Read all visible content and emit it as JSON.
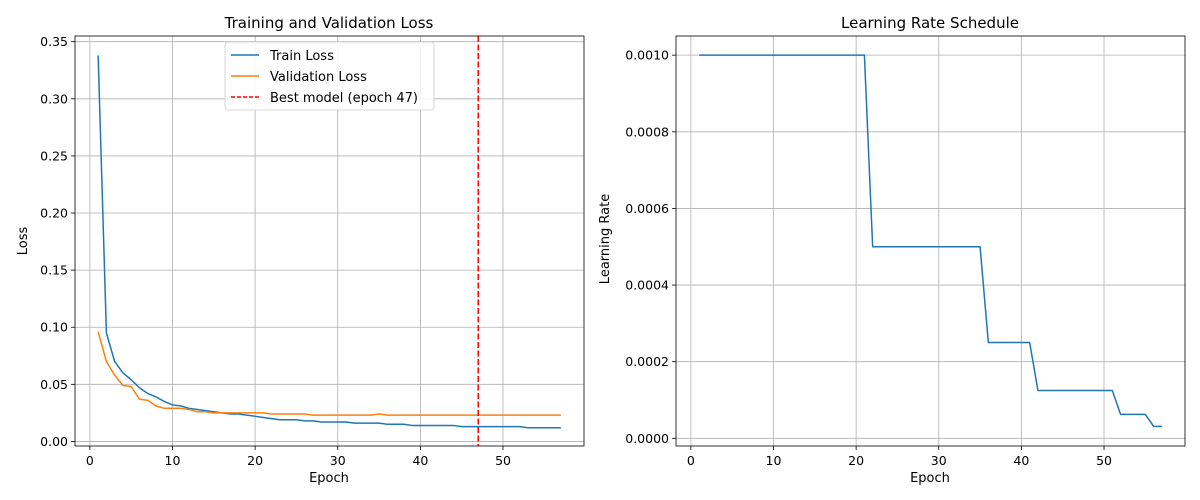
{
  "chart_data": [
    {
      "type": "line",
      "title": "Training and Validation Loss",
      "xlabel": "Epoch",
      "ylabel": "Loss",
      "xlim": [
        -1.8,
        59.8
      ],
      "ylim": [
        -0.004,
        0.355
      ],
      "xticks": [
        0,
        10,
        20,
        30,
        40,
        50
      ],
      "xtick_labels": [
        "0",
        "10",
        "20",
        "30",
        "40",
        "50"
      ],
      "yticks": [
        0.0,
        0.05,
        0.1,
        0.15,
        0.2,
        0.25,
        0.3,
        0.35
      ],
      "ytick_labels": [
        "0.00",
        "0.05",
        "0.10",
        "0.15",
        "0.20",
        "0.25",
        "0.30",
        "0.35"
      ],
      "grid": true,
      "legend_position": "top-center",
      "x": [
        1,
        2,
        3,
        4,
        5,
        6,
        7,
        8,
        9,
        10,
        11,
        12,
        13,
        14,
        15,
        16,
        17,
        18,
        19,
        20,
        21,
        22,
        23,
        24,
        25,
        26,
        27,
        28,
        29,
        30,
        31,
        32,
        33,
        34,
        35,
        36,
        37,
        38,
        39,
        40,
        41,
        42,
        43,
        44,
        45,
        46,
        47,
        48,
        49,
        50,
        51,
        52,
        53,
        54,
        55,
        56,
        57
      ],
      "series": [
        {
          "name": "Train Loss",
          "color": "#1f77b4",
          "values": [
            0.338,
            0.095,
            0.07,
            0.06,
            0.054,
            0.047,
            0.042,
            0.039,
            0.035,
            0.032,
            0.031,
            0.029,
            0.028,
            0.027,
            0.026,
            0.025,
            0.024,
            0.024,
            0.023,
            0.022,
            0.021,
            0.02,
            0.019,
            0.019,
            0.019,
            0.018,
            0.018,
            0.017,
            0.017,
            0.017,
            0.017,
            0.016,
            0.016,
            0.016,
            0.016,
            0.015,
            0.015,
            0.015,
            0.014,
            0.014,
            0.014,
            0.014,
            0.014,
            0.014,
            0.013,
            0.013,
            0.013,
            0.013,
            0.013,
            0.013,
            0.013,
            0.013,
            0.012,
            0.012,
            0.012,
            0.012,
            0.012
          ]
        },
        {
          "name": "Validation Loss",
          "color": "#ff7f0e",
          "values": [
            0.096,
            0.07,
            0.058,
            0.049,
            0.048,
            0.037,
            0.036,
            0.031,
            0.029,
            0.029,
            0.029,
            0.028,
            0.026,
            0.026,
            0.025,
            0.025,
            0.025,
            0.025,
            0.025,
            0.025,
            0.025,
            0.024,
            0.024,
            0.024,
            0.024,
            0.024,
            0.023,
            0.023,
            0.023,
            0.023,
            0.023,
            0.023,
            0.023,
            0.023,
            0.024,
            0.023,
            0.023,
            0.023,
            0.023,
            0.023,
            0.023,
            0.023,
            0.023,
            0.023,
            0.023,
            0.023,
            0.023,
            0.023,
            0.023,
            0.023,
            0.023,
            0.023,
            0.023,
            0.023,
            0.023,
            0.023,
            0.023
          ]
        }
      ],
      "vline": {
        "name": "Best model (epoch 47)",
        "x": 47,
        "color": "#ff0000",
        "style": "dashed"
      }
    },
    {
      "type": "line",
      "title": "Learning Rate Schedule",
      "xlabel": "Epoch",
      "ylabel": "Learning Rate",
      "xlim": [
        -1.8,
        59.8
      ],
      "ylim": [
        -2e-05,
        0.00105
      ],
      "xticks": [
        0,
        10,
        20,
        30,
        40,
        50
      ],
      "xtick_labels": [
        "0",
        "10",
        "20",
        "30",
        "40",
        "50"
      ],
      "yticks": [
        0.0,
        0.0002,
        0.0004,
        0.0006,
        0.0008,
        0.001
      ],
      "ytick_labels": [
        "0.0000",
        "0.0002",
        "0.0004",
        "0.0006",
        "0.0008",
        "0.0010"
      ],
      "grid": true,
      "x": [
        1,
        2,
        3,
        4,
        5,
        6,
        7,
        8,
        9,
        10,
        11,
        12,
        13,
        14,
        15,
        16,
        17,
        18,
        19,
        20,
        21,
        22,
        23,
        24,
        25,
        26,
        27,
        28,
        29,
        30,
        31,
        32,
        33,
        34,
        35,
        36,
        37,
        38,
        39,
        40,
        41,
        42,
        43,
        44,
        45,
        46,
        47,
        48,
        49,
        50,
        51,
        52,
        53,
        54,
        55,
        56,
        57
      ],
      "series": [
        {
          "color": "#1f77b4",
          "values": [
            0.001,
            0.001,
            0.001,
            0.001,
            0.001,
            0.001,
            0.001,
            0.001,
            0.001,
            0.001,
            0.001,
            0.001,
            0.001,
            0.001,
            0.001,
            0.001,
            0.001,
            0.001,
            0.001,
            0.001,
            0.001,
            0.0005,
            0.0005,
            0.0005,
            0.0005,
            0.0005,
            0.0005,
            0.0005,
            0.0005,
            0.0005,
            0.0005,
            0.0005,
            0.0005,
            0.0005,
            0.0005,
            0.00025,
            0.00025,
            0.00025,
            0.00025,
            0.00025,
            0.00025,
            0.000125,
            0.000125,
            0.000125,
            0.000125,
            0.000125,
            0.000125,
            0.000125,
            0.000125,
            0.000125,
            0.000125,
            6.25e-05,
            6.25e-05,
            6.25e-05,
            6.25e-05,
            3.125e-05,
            3.125e-05
          ]
        }
      ]
    }
  ]
}
